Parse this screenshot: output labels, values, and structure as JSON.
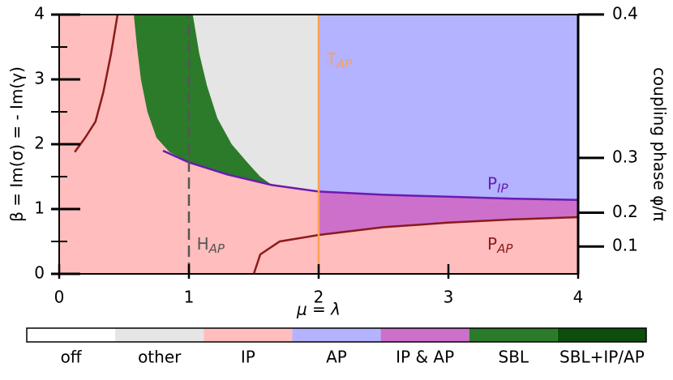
{
  "chart_data": {
    "type": "phase-diagram",
    "x_label": "μ = λ",
    "y_label": "β = Im(σ) = - Im(γ)",
    "y2_label": "coupling phase φ/π",
    "xlim": [
      0,
      4
    ],
    "ylim": [
      0,
      4
    ],
    "xticks": [
      0,
      1,
      2,
      3,
      4
    ],
    "yticks": [
      0,
      1,
      2,
      3,
      4
    ],
    "y_minor_ticks": [
      0.5,
      1.5,
      2.5,
      3.5
    ],
    "y2ticks": [
      0.1,
      0.2,
      0.3,
      0.4
    ],
    "y2_scale": {
      "type": "tan",
      "factor": 1.3
    },
    "legend": {
      "position": "bottom",
      "categories": [
        {
          "name": "off",
          "color": "#ffffff"
        },
        {
          "name": "other",
          "color": "#e5e5e5"
        },
        {
          "name": "IP",
          "color": "#ffbdbd"
        },
        {
          "name": "AP",
          "color": "#b3b3ff"
        },
        {
          "name": "IP & AP",
          "color": "#cc70cc"
        },
        {
          "name": "SBL",
          "color": "#2b7b2b"
        },
        {
          "name": "SBL+IP/AP",
          "color": "#0d4d0d"
        }
      ]
    },
    "regions": [
      {
        "category": 2,
        "x": [
          0,
          4,
          4,
          0
        ],
        "y": [
          0,
          0,
          4,
          4
        ]
      },
      {
        "category": 5,
        "x": [
          0.575,
          0.6,
          0.63,
          0.68,
          0.75,
          0.85,
          1.0,
          1.2,
          1.4,
          1.64,
          1.55,
          1.45,
          1.33,
          1.22,
          1.14,
          1.08,
          1.03
        ],
        "y": [
          4,
          3.5,
          3.0,
          2.5,
          2.1,
          1.88,
          1.72,
          1.58,
          1.47,
          1.37,
          1.5,
          1.72,
          2.0,
          2.4,
          2.9,
          3.4,
          4
        ]
      },
      {
        "category": 1,
        "x": [
          1.03,
          1.08,
          1.14,
          1.22,
          1.33,
          1.45,
          1.55,
          1.64,
          1.8,
          2,
          2
        ],
        "y": [
          4,
          3.4,
          2.9,
          2.4,
          2.0,
          1.72,
          1.5,
          1.37,
          1.32,
          1.27,
          4
        ]
      },
      {
        "category": 3,
        "x": [
          2,
          2,
          2.5,
          3,
          3.5,
          4,
          4
        ],
        "y": [
          4,
          1.27,
          1.22,
          1.19,
          1.16,
          1.14,
          4
        ]
      },
      {
        "category": 4,
        "x": [
          2,
          2.5,
          3,
          3.5,
          4,
          4,
          3.5,
          3,
          2.5,
          2
        ],
        "y": [
          1.27,
          1.22,
          1.19,
          1.16,
          1.14,
          0.875,
          0.84,
          0.79,
          0.72,
          0.6
        ]
      }
    ],
    "lines": [
      {
        "label": "P",
        "sub": "IP",
        "color": "#6a1bb0",
        "dash": "none",
        "x": [
          0.8,
          1.0,
          1.3,
          1.64,
          2,
          2.5,
          3,
          3.5,
          4
        ],
        "y": [
          1.9,
          1.72,
          1.53,
          1.37,
          1.27,
          1.22,
          1.19,
          1.16,
          1.14
        ]
      },
      {
        "label": "P",
        "sub": "AP",
        "color": "#8b1a1a",
        "dash": "none",
        "x": [
          0.12,
          0.2,
          0.28,
          0.34,
          0.4,
          0.45,
          null,
          1.5,
          1.55,
          1.7,
          2,
          2.5,
          3,
          3.5,
          4
        ],
        "y": [
          1.88,
          2.1,
          2.35,
          2.8,
          3.4,
          4,
          null,
          0,
          0.3,
          0.5,
          0.6,
          0.72,
          0.79,
          0.84,
          0.875
        ]
      },
      {
        "label": "H",
        "sub": "AP",
        "color": "#555555",
        "dash": "14 7",
        "x": [
          1,
          1
        ],
        "y": [
          0,
          4
        ]
      },
      {
        "label": "T",
        "sub": "AP",
        "color": "#ffa050",
        "dash": "none",
        "x": [
          2,
          2
        ],
        "y": [
          0,
          4
        ]
      }
    ]
  }
}
